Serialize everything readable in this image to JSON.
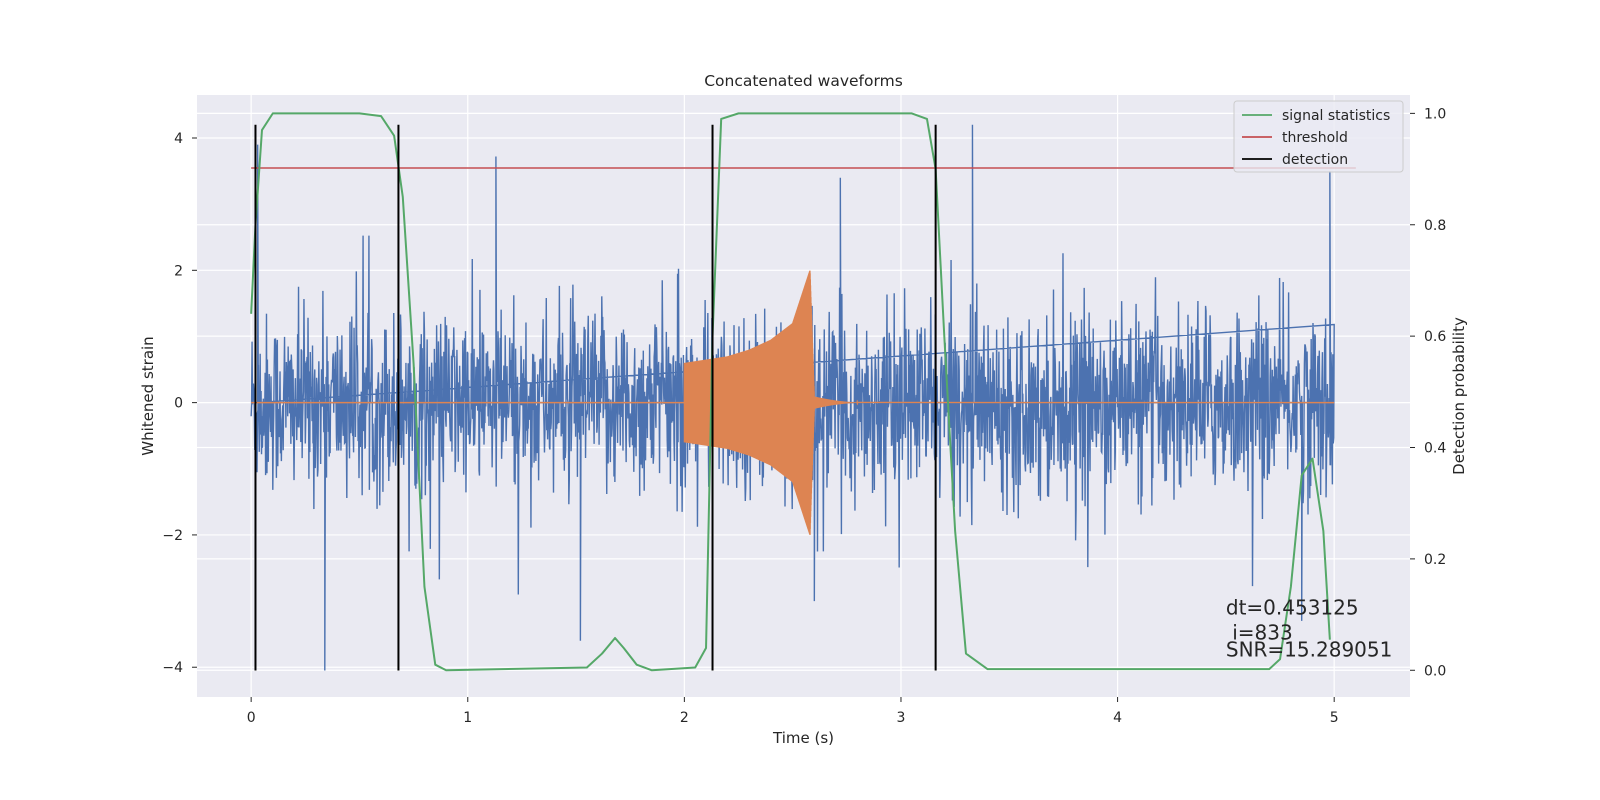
{
  "chart_data": {
    "type": "line",
    "title": "Concatenated waveforms",
    "xlabel": "Time (s)",
    "ylabel": "Whitened strain",
    "y2label": "Detection probability",
    "xlim": [
      -0.25,
      5.35
    ],
    "ylim": [
      -4.45,
      4.65
    ],
    "y2lim": [
      -0.048,
      1.033
    ],
    "xticks": [
      0,
      1,
      2,
      3,
      4,
      5
    ],
    "yticks": [
      -4,
      -2,
      0,
      2,
      4
    ],
    "y2ticks": [
      0.0,
      0.2,
      0.4,
      0.6,
      0.8,
      1.0
    ],
    "grid": true,
    "legend_position": "top-right",
    "colors": {
      "strain": "#4c72b0",
      "template": "#dd8452",
      "signal": "#55a868",
      "threshold": "#c44e52",
      "detection": "#000000",
      "axes_bg": "#eaeaf2",
      "grid": "#ffffff"
    },
    "series": [
      {
        "name": "",
        "axis": "left",
        "style": "noise",
        "x_range": [
          0,
          5
        ],
        "typical_amplitude": 0.85,
        "peak_values": [
          {
            "x": 0.03,
            "y": 3.9
          },
          {
            "x": 0.34,
            "y": -4.05
          },
          {
            "x": 1.13,
            "y": 3.72
          },
          {
            "x": 1.52,
            "y": -3.6
          },
          {
            "x": 2.6,
            "y": -3.0
          },
          {
            "x": 2.72,
            "y": 3.4
          },
          {
            "x": 3.33,
            "y": 4.2
          },
          {
            "x": 4.85,
            "y": -3.3
          },
          {
            "x": 4.98,
            "y": 3.5
          }
        ]
      },
      {
        "name": "",
        "axis": "left",
        "style": "chirp",
        "x": [
          0,
          2.0,
          2.1,
          2.2,
          2.3,
          2.4,
          2.5,
          2.58,
          2.6,
          2.8,
          5.0
        ],
        "envelope": [
          0,
          0.6,
          0.65,
          0.7,
          0.8,
          0.95,
          1.2,
          2.0,
          0.1,
          0.02,
          0
        ]
      },
      {
        "name": "signal statistics",
        "axis": "right",
        "x": [
          0,
          0.02,
          0.05,
          0.1,
          0.5,
          0.6,
          0.66,
          0.7,
          0.75,
          0.8,
          0.85,
          0.9,
          1.55,
          1.62,
          1.68,
          1.72,
          1.78,
          1.85,
          2.05,
          2.1,
          2.13,
          2.17,
          2.25,
          3.05,
          3.12,
          3.16,
          3.2,
          3.25,
          3.3,
          3.4,
          4.7,
          4.75,
          4.8,
          4.85,
          4.9,
          4.95,
          4.98
        ],
        "y": [
          0.64,
          0.8,
          0.97,
          1.0,
          1.0,
          0.995,
          0.96,
          0.85,
          0.55,
          0.15,
          0.01,
          0.0,
          0.005,
          0.03,
          0.058,
          0.04,
          0.01,
          0.0,
          0.005,
          0.04,
          0.6,
          0.99,
          1.0,
          1.0,
          0.99,
          0.9,
          0.6,
          0.25,
          0.03,
          0.002,
          0.002,
          0.02,
          0.15,
          0.35,
          0.38,
          0.25,
          0.055
        ]
      },
      {
        "name": "threshold",
        "axis": "right",
        "x": [
          0,
          5.1
        ],
        "y": [
          0.902,
          0.902
        ]
      }
    ],
    "detections": {
      "name": "detection",
      "x": [
        0.02,
        0.68,
        2.13,
        3.16
      ],
      "y_range": [
        -4.05,
        4.2
      ]
    },
    "legend": [
      "signal statistics",
      "threshold",
      "detection"
    ],
    "annotations": [
      {
        "text": "dt=0.453125",
        "x": 4.5,
        "y2": 0.1
      },
      {
        "text": " i=833",
        "x": 4.5,
        "y2": 0.055
      },
      {
        "text": "SNR=15.289051",
        "x": 4.5,
        "y2": 0.025
      }
    ]
  }
}
